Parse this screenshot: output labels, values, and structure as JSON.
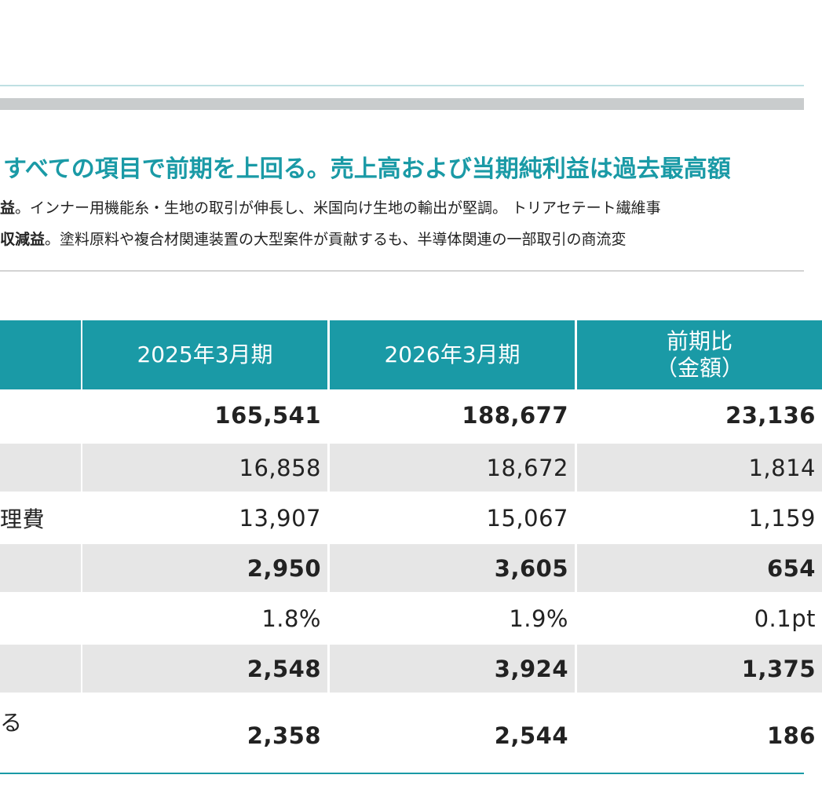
{
  "headline": "すべての項目で前期を上回る。売上高および当期純利益は過去最高額",
  "notes": [
    {
      "bold": "益",
      "text": "。インナー用機能糸・生地の取引が伸長し、米国向け生地の輸出が堅調。 トリアセテート繊維事"
    },
    {
      "bold": "収減益",
      "text": "。塗料原料や複合材関連装置の大型案件が貢献するも、半導体関連の一部取引の商流変"
    }
  ],
  "table": {
    "header": [
      "2025年3月期",
      "2026年3月期",
      "前期比\n（金額）"
    ],
    "rows": [
      {
        "label": "",
        "bold": true,
        "values": [
          "165,541",
          "188,677",
          "23,136"
        ]
      },
      {
        "label": "",
        "bold": false,
        "values": [
          "16,858",
          "18,672",
          "1,814"
        ]
      },
      {
        "label": "理費",
        "bold": false,
        "values": [
          "13,907",
          "15,067",
          "1,159"
        ]
      },
      {
        "label": "",
        "bold": true,
        "values": [
          "2,950",
          "3,605",
          "654"
        ]
      },
      {
        "label": "",
        "bold": false,
        "values": [
          "1.8%",
          "1.9%",
          "0.1pt"
        ]
      },
      {
        "label": "",
        "bold": true,
        "values": [
          "2,548",
          "3,924",
          "1,375"
        ]
      },
      {
        "label": "る",
        "bold": true,
        "values": [
          "2,358",
          "2,544",
          "186"
        ]
      }
    ]
  }
}
